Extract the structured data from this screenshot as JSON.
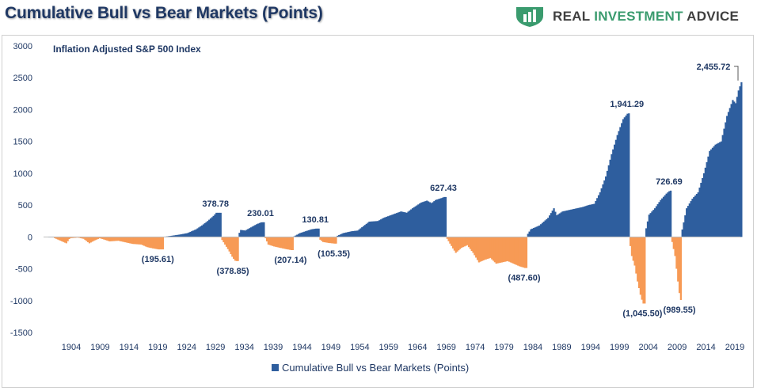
{
  "title": "Cumulative Bull vs Bear Markets (Points)",
  "brand": {
    "part1": "REAL ",
    "part2": "INVESTMENT",
    "part3": " ADVICE",
    "accent_color": "#3a9b6e",
    "icon": "shield-icon"
  },
  "chart_data": {
    "type": "area",
    "title": "Cumulative Bull vs Bear Markets (Points)",
    "subtitle": "Inflation Adjusted S&P 500 Index",
    "xlabel": "",
    "ylabel": "",
    "ylim": [
      -1500,
      3000
    ],
    "xlim": [
      1900,
      2020
    ],
    "yticks": [
      3000,
      2500,
      2000,
      1500,
      1000,
      500,
      0,
      -500,
      -1000,
      -1500
    ],
    "ytick_labels": [
      "3000",
      "2500",
      "2000",
      "1500",
      "1000",
      "500",
      "0",
      "-500",
      "-1000",
      "-1500"
    ],
    "xticks": [
      1904,
      1909,
      1914,
      1919,
      1924,
      1929,
      1934,
      1939,
      1944,
      1949,
      1954,
      1959,
      1964,
      1969,
      1974,
      1979,
      1984,
      1989,
      1994,
      1999,
      2004,
      2009,
      2014,
      2019
    ],
    "xtick_labels": [
      "1904",
      "1909",
      "1914",
      "1919",
      "1924",
      "1929",
      "1934",
      "1939",
      "1944",
      "1949",
      "1954",
      "1959",
      "1964",
      "1969",
      "1974",
      "1979",
      "1984",
      "1989",
      "1994",
      "1999",
      "2004",
      "2009",
      "2014",
      "2019"
    ],
    "grid": false,
    "legend_position": "bottom",
    "colors": {
      "bull": "#2e5e9e",
      "bear": "#f79a55"
    },
    "series": [
      {
        "name": "Cumulative Bull vs Bear Markets (Points)",
        "points": [
          [
            1900.0,
            0
          ],
          [
            1901.0,
            -20
          ],
          [
            1902.0,
            -60
          ],
          [
            1903.0,
            -100
          ],
          [
            1903.6,
            -20
          ],
          [
            1905.0,
            -10
          ],
          [
            1906.0,
            -30
          ],
          [
            1907.0,
            -100
          ],
          [
            1907.8,
            -60
          ],
          [
            1908.8,
            -20
          ],
          [
            1909.5,
            -40
          ],
          [
            1910.5,
            -70
          ],
          [
            1912.0,
            -60
          ],
          [
            1913.5,
            -90
          ],
          [
            1914.5,
            -110
          ],
          [
            1916.0,
            -120
          ],
          [
            1917.0,
            -160
          ],
          [
            1918.0,
            -180
          ],
          [
            1919.0,
            -196
          ],
          [
            1919.8,
            0
          ],
          [
            1921.0,
            15
          ],
          [
            1922.5,
            35
          ],
          [
            1924.0,
            60
          ],
          [
            1925.5,
            120
          ],
          [
            1926.5,
            180
          ],
          [
            1927.5,
            250
          ],
          [
            1928.5,
            330
          ],
          [
            1929.0,
            379
          ],
          [
            1929.8,
            -20
          ],
          [
            1930.5,
            -120
          ],
          [
            1931.2,
            -220
          ],
          [
            1931.8,
            -320
          ],
          [
            1932.3,
            -379
          ],
          [
            1932.8,
            20
          ],
          [
            1933.2,
            110
          ],
          [
            1934.0,
            100
          ],
          [
            1935.0,
            150
          ],
          [
            1936.0,
            200
          ],
          [
            1936.8,
            230
          ],
          [
            1937.5,
            -20
          ],
          [
            1938.0,
            -120
          ],
          [
            1939.0,
            -150
          ],
          [
            1940.0,
            -170
          ],
          [
            1941.0,
            -190
          ],
          [
            1942.0,
            -207
          ],
          [
            1942.5,
            10
          ],
          [
            1943.5,
            60
          ],
          [
            1944.5,
            90
          ],
          [
            1945.5,
            120
          ],
          [
            1946.3,
            131
          ],
          [
            1946.8,
            -30
          ],
          [
            1947.5,
            -80
          ],
          [
            1948.5,
            -95
          ],
          [
            1949.5,
            -105
          ],
          [
            1949.8,
            10
          ],
          [
            1951.0,
            60
          ],
          [
            1952.5,
            90
          ],
          [
            1953.5,
            100
          ],
          [
            1954.5,
            170
          ],
          [
            1955.5,
            240
          ],
          [
            1957.0,
            250
          ],
          [
            1958.0,
            300
          ],
          [
            1959.5,
            350
          ],
          [
            1961.0,
            400
          ],
          [
            1962.0,
            380
          ],
          [
            1963.0,
            450
          ],
          [
            1964.5,
            540
          ],
          [
            1965.5,
            570
          ],
          [
            1966.3,
            530
          ],
          [
            1967.0,
            580
          ],
          [
            1968.0,
            610
          ],
          [
            1968.5,
            627
          ],
          [
            1969.0,
            -30
          ],
          [
            1970.0,
            -180
          ],
          [
            1970.5,
            -250
          ],
          [
            1971.5,
            -170
          ],
          [
            1972.5,
            -130
          ],
          [
            1973.5,
            -250
          ],
          [
            1974.5,
            -400
          ],
          [
            1975.5,
            -360
          ],
          [
            1976.5,
            -330
          ],
          [
            1977.5,
            -420
          ],
          [
            1978.5,
            -400
          ],
          [
            1979.5,
            -380
          ],
          [
            1980.5,
            -420
          ],
          [
            1981.5,
            -460
          ],
          [
            1982.5,
            -488
          ],
          [
            1982.8,
            20
          ],
          [
            1983.5,
            120
          ],
          [
            1985.0,
            180
          ],
          [
            1986.5,
            300
          ],
          [
            1987.5,
            450
          ],
          [
            1988.0,
            340
          ],
          [
            1989.0,
            400
          ],
          [
            1990.0,
            420
          ],
          [
            1991.0,
            440
          ],
          [
            1992.5,
            470
          ],
          [
            1993.5,
            500
          ],
          [
            1994.5,
            520
          ],
          [
            1995.5,
            700
          ],
          [
            1996.5,
            950
          ],
          [
            1997.5,
            1300
          ],
          [
            1998.5,
            1600
          ],
          [
            1999.5,
            1850
          ],
          [
            2000.3,
            1941
          ],
          [
            2000.6,
            -50
          ],
          [
            2001.0,
            -300
          ],
          [
            2001.5,
            -450
          ],
          [
            2002.0,
            -700
          ],
          [
            2002.6,
            -950
          ],
          [
            2003.0,
            -1046
          ],
          [
            2003.3,
            50
          ],
          [
            2004.0,
            350
          ],
          [
            2005.0,
            450
          ],
          [
            2006.0,
            580
          ],
          [
            2007.0,
            680
          ],
          [
            2007.6,
            727
          ],
          [
            2008.0,
            -80
          ],
          [
            2008.5,
            -300
          ],
          [
            2009.0,
            -700
          ],
          [
            2009.4,
            -990
          ],
          [
            2009.6,
            50
          ],
          [
            2010.5,
            450
          ],
          [
            2011.5,
            600
          ],
          [
            2012.5,
            700
          ],
          [
            2013.5,
            1000
          ],
          [
            2014.5,
            1350
          ],
          [
            2015.5,
            1450
          ],
          [
            2016.5,
            1500
          ],
          [
            2017.5,
            1900
          ],
          [
            2018.5,
            2150
          ],
          [
            2019.0,
            2100
          ],
          [
            2019.5,
            2300
          ],
          [
            2020.1,
            2456
          ]
        ]
      }
    ],
    "annotations": [
      {
        "label": "(195.61)",
        "x": 1919,
        "y": -196
      },
      {
        "label": "378.78",
        "x": 1929,
        "y": 379
      },
      {
        "label": "(378.85)",
        "x": 1932,
        "y": -379
      },
      {
        "label": "230.01",
        "x": 1936.8,
        "y": 230
      },
      {
        "label": "(207.14)",
        "x": 1942,
        "y": -207
      },
      {
        "label": "130.81",
        "x": 1946.3,
        "y": 131
      },
      {
        "label": "(105.35)",
        "x": 1949.5,
        "y": -105
      },
      {
        "label": "627.43",
        "x": 1968.5,
        "y": 627
      },
      {
        "label": "(487.60)",
        "x": 1982.5,
        "y": -488
      },
      {
        "label": "1,941.29",
        "x": 2000.3,
        "y": 1941
      },
      {
        "label": "(1,045.50)",
        "x": 2003,
        "y": -1046
      },
      {
        "label": "726.69",
        "x": 2007.6,
        "y": 727
      },
      {
        "label": "(989.55)",
        "x": 2009.4,
        "y": -990
      },
      {
        "label": "2,455.72",
        "x": 2020.1,
        "y": 2456
      }
    ]
  }
}
